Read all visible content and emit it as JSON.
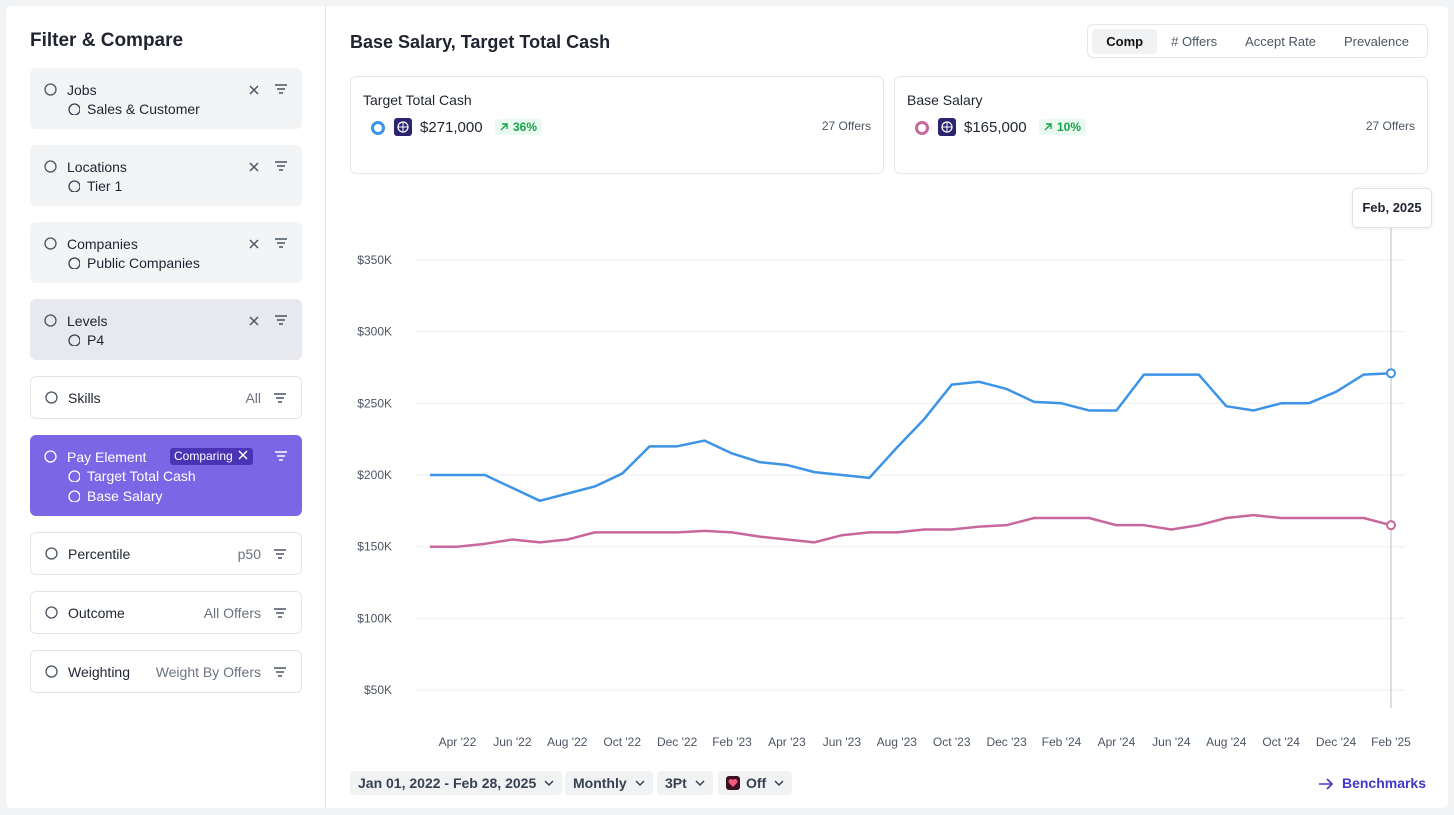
{
  "sidebar": {
    "title": "Filter & Compare",
    "filters": [
      {
        "label": "Jobs",
        "selection": "Sales & Customer"
      },
      {
        "label": "Locations",
        "selection": "Tier 1"
      },
      {
        "label": "Companies",
        "selection": "Public Companies"
      },
      {
        "label": "Levels",
        "selection": "P4"
      },
      {
        "label": "Skills",
        "value": "All"
      },
      {
        "label": "Pay Element",
        "badge": "Comparing",
        "values": [
          "Target Total Cash",
          "Base Salary"
        ]
      },
      {
        "label": "Percentile",
        "value": "p50"
      },
      {
        "label": "Outcome",
        "value": "All Offers"
      },
      {
        "label": "Weighting",
        "value": "Weight By Offers"
      }
    ]
  },
  "header": {
    "title": "Base Salary, Target Total Cash",
    "tabs": [
      "Comp",
      "# Offers",
      "Accept Rate",
      "Prevalence"
    ],
    "active_tab": 0
  },
  "cards": [
    {
      "title": "Target Total Cash",
      "value": "$271,000",
      "change": "36%",
      "offers": "27 Offers"
    },
    {
      "title": "Base Salary",
      "value": "$165,000",
      "change": "10%",
      "offers": "27 Offers"
    }
  ],
  "tooltip": "Feb, 2025",
  "footer": {
    "date_range": "Jan 01, 2022 - Feb 28, 2025",
    "interval": "Monthly",
    "smoothing": "3Pt",
    "toggle": "Off",
    "link": "Benchmarks"
  },
  "chart_data": {
    "type": "line",
    "categories": [
      null,
      "Apr '22",
      null,
      "Jun '22",
      null,
      "Aug '22",
      null,
      "Oct '22",
      null,
      "Dec '22",
      null,
      "Feb '23",
      null,
      "Apr '23",
      null,
      "Jun '23",
      null,
      "Aug '23",
      null,
      "Oct '23",
      null,
      "Dec '23",
      null,
      "Feb '24",
      null,
      "Apr '24",
      null,
      "Jun '24",
      null,
      "Aug '24",
      null,
      "Oct '24",
      null,
      "Dec '24",
      null,
      "Feb '25"
    ],
    "series": [
      {
        "name": "Target Total Cash",
        "color": "#3d94e6",
        "values": [
          200000,
          200000,
          200000,
          191000,
          182000,
          187000,
          192000,
          201000,
          220000,
          220000,
          224000,
          215000,
          209000,
          207000,
          202000,
          200000,
          198000,
          219000,
          239000,
          263000,
          265000,
          260000,
          251000,
          250000,
          245000,
          245000,
          270000,
          270000,
          270000,
          248000,
          245000,
          250000,
          250000,
          258000,
          270000,
          271000
        ]
      },
      {
        "name": "Base Salary",
        "color": "#c8679b",
        "values": [
          150000,
          150000,
          152000,
          155000,
          153000,
          155000,
          160000,
          160000,
          160000,
          160000,
          161000,
          160000,
          157000,
          155000,
          153000,
          158000,
          160000,
          160000,
          162000,
          162000,
          164000,
          165000,
          170000,
          170000,
          170000,
          165000,
          165000,
          162000,
          165000,
          170000,
          172000,
          170000,
          170000,
          170000,
          170000,
          165000
        ]
      }
    ],
    "ylim": [
      37500,
      362500
    ],
    "yticks": [
      {
        "value": 50000,
        "label": "$50K"
      },
      {
        "value": 100000,
        "label": "$100K"
      },
      {
        "value": 150000,
        "label": "$150K"
      },
      {
        "value": 200000,
        "label": "$200K"
      },
      {
        "value": 250000,
        "label": "$250K"
      },
      {
        "value": 300000,
        "label": "$300K"
      },
      {
        "value": 350000,
        "label": "$350K"
      }
    ],
    "grid": true
  }
}
